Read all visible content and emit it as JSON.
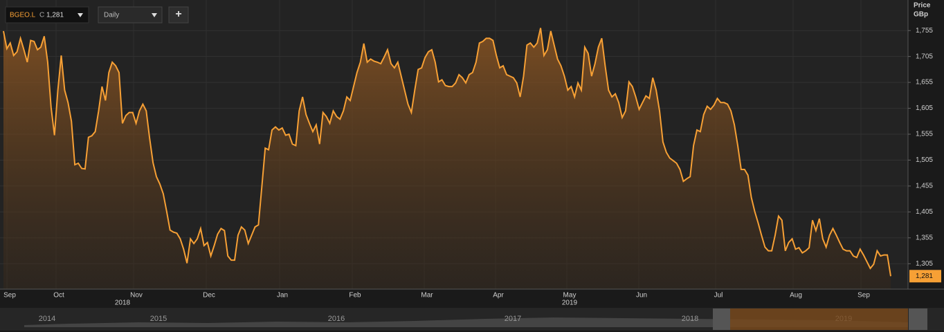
{
  "toolbar": {
    "symbol": "BGEO.L",
    "close_prefix": "C",
    "close": "1,281",
    "interval": "Daily",
    "add": "+"
  },
  "chart_data": {
    "type": "area",
    "ylabel": "Price",
    "yunit": "GBp",
    "xticks": [
      "Sep",
      "Oct",
      "Nov",
      "Dec",
      "Jan",
      "Feb",
      "Mar",
      "Apr",
      "May",
      "Jun",
      "Jul",
      "Aug",
      "Sep"
    ],
    "year_labels": [
      "2018",
      "2019"
    ],
    "ylim": [
      1256,
      1814
    ],
    "yticks": [
      {
        "value": 1305,
        "label": "1,305"
      },
      {
        "value": 1355,
        "label": "1,355"
      },
      {
        "value": 1405,
        "label": "1,405"
      },
      {
        "value": 1455,
        "label": "1,455"
      },
      {
        "value": 1505,
        "label": "1,505"
      },
      {
        "value": 1555,
        "label": "1,555"
      },
      {
        "value": 1605,
        "label": "1,605"
      },
      {
        "value": 1655,
        "label": "1,655"
      },
      {
        "value": 1705,
        "label": "1,705"
      },
      {
        "value": 1755,
        "label": "1,755"
      }
    ],
    "grid": true,
    "current_price_label": "1,281",
    "series": [
      {
        "name": "BGEO.L",
        "color": "#f7a035",
        "values": [
          1754,
          1720,
          1731,
          1707,
          1714,
          1740,
          1718,
          1694,
          1736,
          1734,
          1718,
          1723,
          1744,
          1694,
          1607,
          1553,
          1640,
          1707,
          1640,
          1616,
          1580,
          1496,
          1499,
          1489,
          1488,
          1549,
          1552,
          1560,
          1600,
          1647,
          1620,
          1674,
          1694,
          1687,
          1674,
          1576,
          1591,
          1597,
          1597,
          1576,
          1600,
          1613,
          1600,
          1547,
          1500,
          1473,
          1459,
          1440,
          1406,
          1370,
          1366,
          1364,
          1353,
          1333,
          1306,
          1353,
          1344,
          1353,
          1373,
          1340,
          1346,
          1320,
          1340,
          1362,
          1373,
          1369,
          1320,
          1312,
          1312,
          1360,
          1376,
          1370,
          1344,
          1360,
          1376,
          1380,
          1453,
          1528,
          1525,
          1563,
          1569,
          1563,
          1567,
          1553,
          1555,
          1536,
          1533,
          1600,
          1627,
          1593,
          1576,
          1560,
          1573,
          1536,
          1597,
          1589,
          1576,
          1600,
          1589,
          1584,
          1600,
          1627,
          1620,
          1647,
          1674,
          1694,
          1730,
          1694,
          1700,
          1696,
          1694,
          1691,
          1704,
          1718,
          1691,
          1683,
          1694,
          1667,
          1640,
          1613,
          1597,
          1640,
          1680,
          1683,
          1703,
          1714,
          1718,
          1694,
          1656,
          1660,
          1649,
          1647,
          1647,
          1654,
          1670,
          1664,
          1654,
          1670,
          1674,
          1694,
          1731,
          1734,
          1740,
          1740,
          1736,
          1707,
          1683,
          1687,
          1670,
          1667,
          1664,
          1654,
          1627,
          1667,
          1727,
          1731,
          1723,
          1731,
          1760,
          1707,
          1718,
          1754,
          1727,
          1700,
          1687,
          1667,
          1640,
          1647,
          1627,
          1654,
          1640,
          1723,
          1711,
          1667,
          1691,
          1723,
          1740,
          1687,
          1640,
          1627,
          1633,
          1616,
          1587,
          1600,
          1656,
          1647,
          1627,
          1603,
          1616,
          1629,
          1624,
          1664,
          1640,
          1600,
          1540,
          1520,
          1509,
          1504,
          1499,
          1487,
          1464,
          1469,
          1473,
          1533,
          1563,
          1560,
          1593,
          1609,
          1603,
          1611,
          1624,
          1616,
          1616,
          1613,
          1600,
          1573,
          1533,
          1487,
          1487,
          1476,
          1433,
          1406,
          1384,
          1360,
          1337,
          1330,
          1330,
          1360,
          1397,
          1389,
          1330,
          1346,
          1353,
          1333,
          1336,
          1326,
          1330,
          1336,
          1389,
          1369,
          1392,
          1353,
          1337,
          1360,
          1373,
          1360,
          1346,
          1333,
          1330,
          1330,
          1320,
          1317,
          1333,
          1322,
          1309,
          1296,
          1304,
          1330,
          1320,
          1322,
          1322,
          1281
        ]
      }
    ]
  },
  "navigator": {
    "years": [
      "2014",
      "2015",
      "2016",
      "2017",
      "2018",
      "2019"
    ]
  }
}
